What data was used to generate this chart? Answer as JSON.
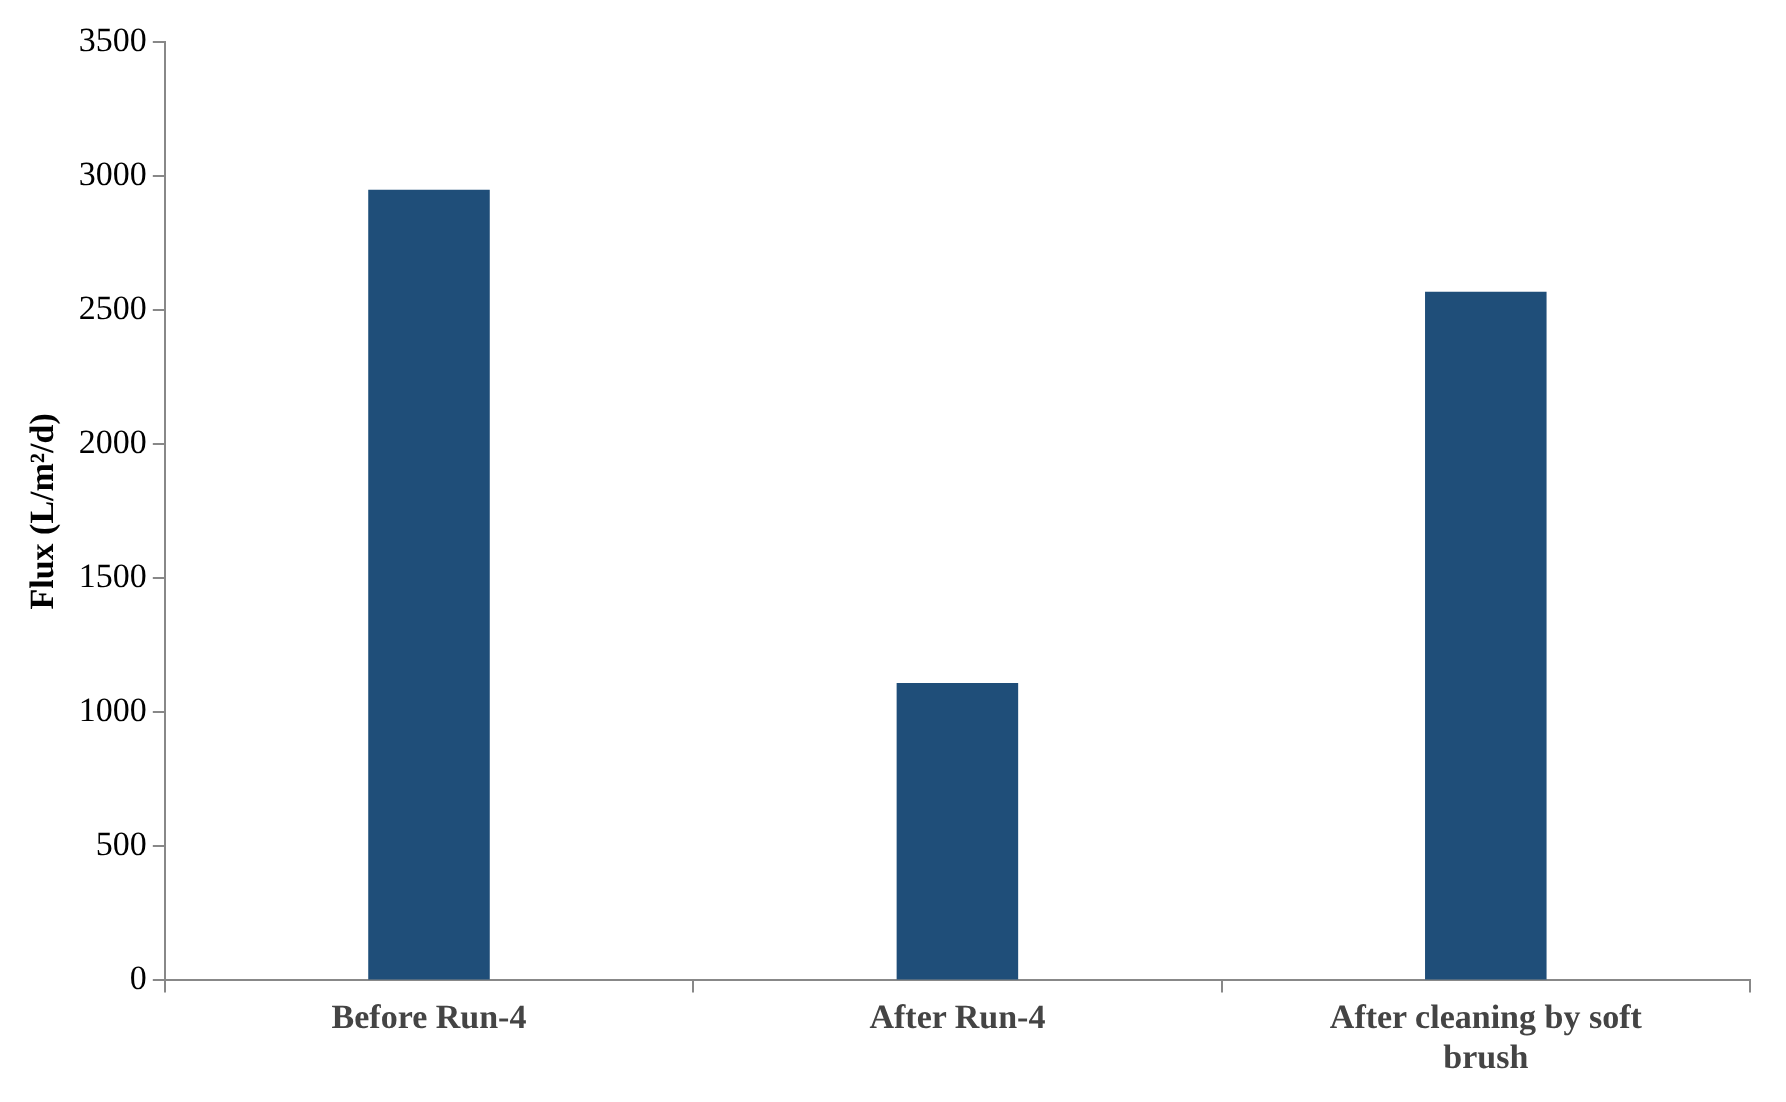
{
  "chart_data": {
    "type": "bar",
    "ylabel": "Flux (L/m²/d)",
    "categories": [
      "Before Run-4",
      "After Run-4",
      "After cleaning by soft brush"
    ],
    "values": [
      2950,
      1110,
      2570
    ],
    "color": "#1f4e79",
    "ylim": [
      0,
      3500
    ],
    "yticks": [
      0,
      500,
      1000,
      1500,
      2000,
      2500,
      3000,
      3500
    ],
    "grid": false,
    "legend": false
  }
}
